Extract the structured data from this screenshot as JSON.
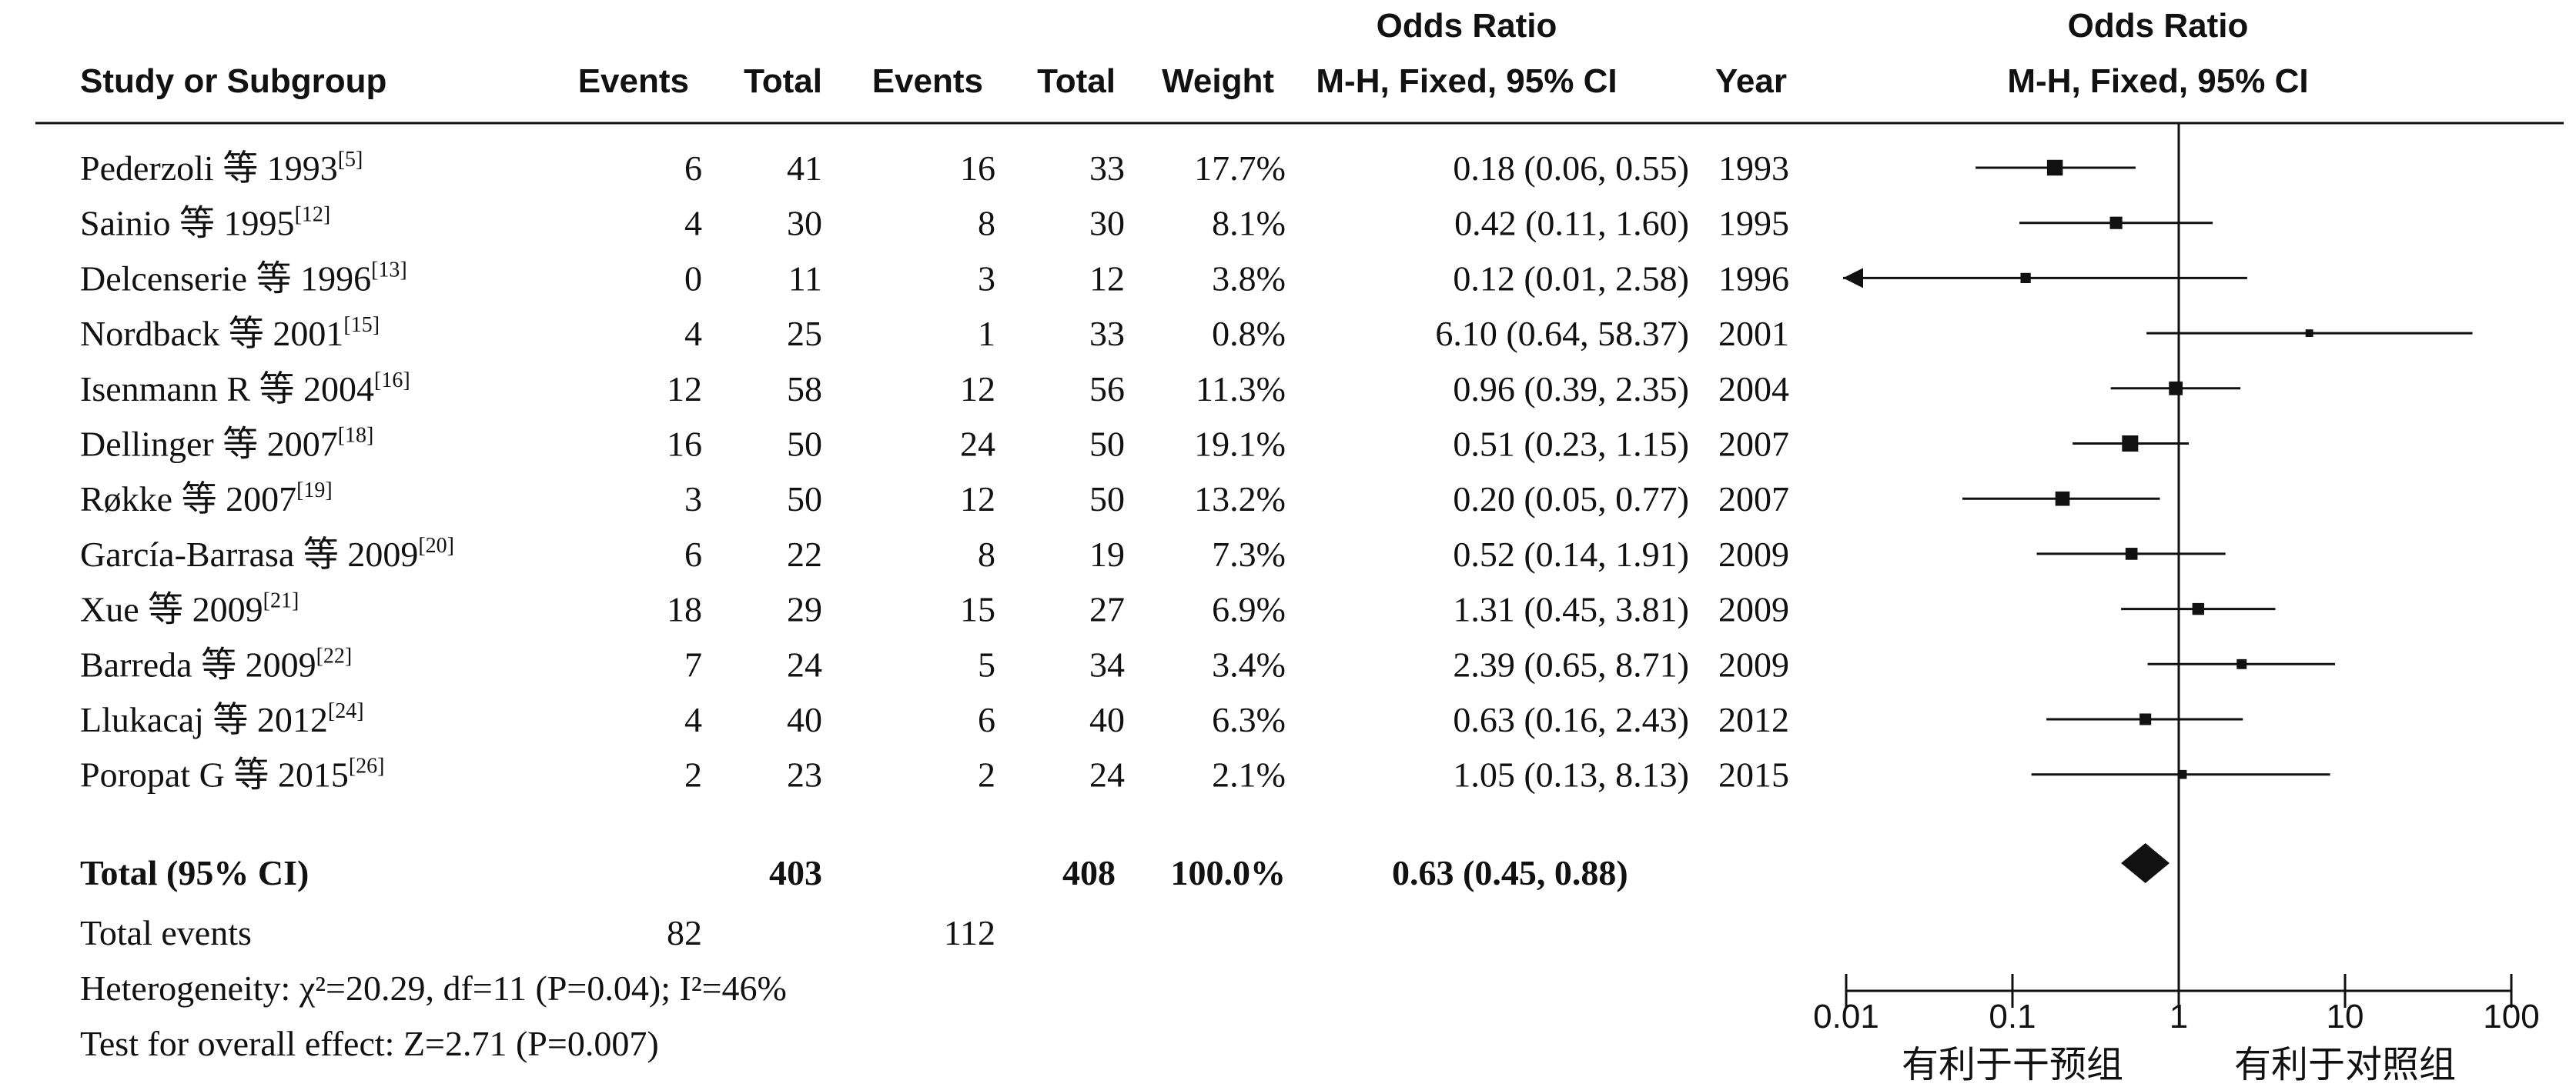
{
  "header": {
    "study": "Study or Subgroup",
    "events1": "Events",
    "total1": "Total",
    "events2": "Events",
    "total2": "Total",
    "weight": "Weight",
    "or_title": "Odds Ratio",
    "or_method": "M-H, Fixed, 95% CI",
    "year": "Year",
    "plot_title": "Odds Ratio",
    "plot_method": "M-H, Fixed, 95% CI"
  },
  "footer": {
    "total_events_label": "Total events",
    "heterogeneity": "Heterogeneity: χ²=20.29, df=11 (P=0.04); I²=46%",
    "overall_effect": "Test for overall effect: Z=2.71 (P=0.007)",
    "favours_left": "有利于干预组",
    "favours_right": "有利于对照组"
  },
  "chart_data": {
    "type": "forest",
    "x_scale": "log",
    "xlim": [
      0.01,
      100
    ],
    "null_line": 1,
    "x_ticks": [
      "0.01",
      "0.1",
      "1",
      "10",
      "100"
    ],
    "studies": [
      {
        "study": "Pederzoli 等 1993",
        "ref": "[5]",
        "events1": "6",
        "total1": "41",
        "events2": "16",
        "total2": "33",
        "weight": "17.7%",
        "or_text": "0.18 (0.06, 0.55)",
        "year": "1993",
        "or": 0.18,
        "lo": 0.06,
        "hi": 0.55,
        "w": 17.7
      },
      {
        "study": "Sainio 等 1995",
        "ref": "[12]",
        "events1": "4",
        "total1": "30",
        "events2": "8",
        "total2": "30",
        "weight": "8.1%",
        "or_text": "0.42 (0.11, 1.60)",
        "year": "1995",
        "or": 0.42,
        "lo": 0.11,
        "hi": 1.6,
        "w": 8.1
      },
      {
        "study": "Delcenserie 等 1996",
        "ref": "[13]",
        "events1": "0",
        "total1": "11",
        "events2": "3",
        "total2": "12",
        "weight": "3.8%",
        "or_text": "0.12 (0.01, 2.58)",
        "year": "1996",
        "or": 0.12,
        "lo": 0.01,
        "hi": 2.58,
        "w": 3.8
      },
      {
        "study": "Nordback 等 2001",
        "ref": "[15]",
        "events1": "4",
        "total1": "25",
        "events2": "1",
        "total2": "33",
        "weight": "0.8%",
        "or_text": "6.10 (0.64, 58.37)",
        "year": "2001",
        "or": 6.1,
        "lo": 0.64,
        "hi": 58.37,
        "w": 0.8
      },
      {
        "study": "Isenmann R 等 2004",
        "ref": "[16]",
        "events1": "12",
        "total1": "58",
        "events2": "12",
        "total2": "56",
        "weight": "11.3%",
        "or_text": "0.96 (0.39, 2.35)",
        "year": "2004",
        "or": 0.96,
        "lo": 0.39,
        "hi": 2.35,
        "w": 11.3
      },
      {
        "study": "Dellinger 等 2007",
        "ref": "[18]",
        "events1": "16",
        "total1": "50",
        "events2": "24",
        "total2": "50",
        "weight": "19.1%",
        "or_text": "0.51 (0.23, 1.15)",
        "year": "2007",
        "or": 0.51,
        "lo": 0.23,
        "hi": 1.15,
        "w": 19.1
      },
      {
        "study": "Røkke 等 2007",
        "ref": "[19]",
        "events1": "3",
        "total1": "50",
        "events2": "12",
        "total2": "50",
        "weight": "13.2%",
        "or_text": "0.20 (0.05, 0.77)",
        "year": "2007",
        "or": 0.2,
        "lo": 0.05,
        "hi": 0.77,
        "w": 13.2
      },
      {
        "study": "García-Barrasa 等 2009",
        "ref": "[20]",
        "events1": "6",
        "total1": "22",
        "events2": "8",
        "total2": "19",
        "weight": "7.3%",
        "or_text": "0.52 (0.14, 1.91)",
        "year": "2009",
        "or": 0.52,
        "lo": 0.14,
        "hi": 1.91,
        "w": 7.3
      },
      {
        "study": "Xue 等 2009",
        "ref": "[21]",
        "events1": "18",
        "total1": "29",
        "events2": "15",
        "total2": "27",
        "weight": "6.9%",
        "or_text": "1.31 (0.45, 3.81)",
        "year": "2009",
        "or": 1.31,
        "lo": 0.45,
        "hi": 3.81,
        "w": 6.9
      },
      {
        "study": "Barreda 等 2009",
        "ref": "[22]",
        "events1": "7",
        "total1": "24",
        "events2": "5",
        "total2": "34",
        "weight": "3.4%",
        "or_text": "2.39 (0.65, 8.71)",
        "year": "2009",
        "or": 2.39,
        "lo": 0.65,
        "hi": 8.71,
        "w": 3.4
      },
      {
        "study": "Llukacaj 等 2012",
        "ref": "[24]",
        "events1": "4",
        "total1": "40",
        "events2": "6",
        "total2": "40",
        "weight": "6.3%",
        "or_text": "0.63 (0.16, 2.43)",
        "year": "2012",
        "or": 0.63,
        "lo": 0.16,
        "hi": 2.43,
        "w": 6.3
      },
      {
        "study": "Poropat G 等 2015",
        "ref": "[26]",
        "events1": "2",
        "total1": "23",
        "events2": "2",
        "total2": "24",
        "weight": "2.1%",
        "or_text": "1.05 (0.13, 8.13)",
        "year": "2015",
        "or": 1.05,
        "lo": 0.13,
        "hi": 8.13,
        "w": 2.1
      }
    ],
    "total": {
      "label": "Total (95% CI)",
      "total1": "403",
      "total2": "408",
      "weight": "100.0%",
      "or_text": "0.63 (0.45, 0.88)",
      "or": 0.63,
      "lo": 0.45,
      "hi": 0.88
    },
    "total_events": {
      "events1": "82",
      "events2": "112"
    }
  }
}
